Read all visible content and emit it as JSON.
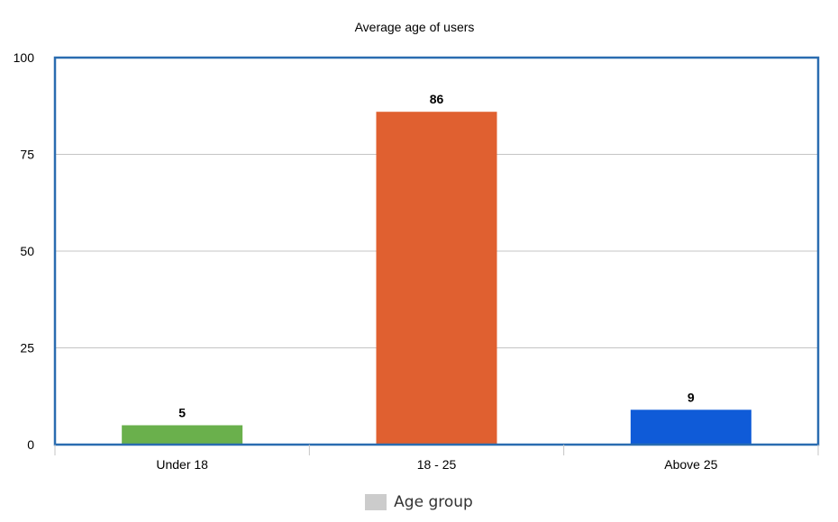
{
  "chart_data": {
    "type": "bar",
    "title": "Average age of users",
    "categories": [
      "Under 18",
      "18 - 25",
      "Above 25"
    ],
    "values": [
      5,
      86,
      9
    ],
    "data_labels": [
      "5",
      "86",
      "9"
    ],
    "yticks": [
      "0",
      "25",
      "50",
      "75",
      "100"
    ],
    "ylim": [
      0,
      100
    ],
    "xlabel": "",
    "ylabel": "",
    "grid": true,
    "legend_position": "bottom",
    "bar_colors": [
      "#6ab04c",
      "#e06030",
      "#0f5bd8"
    ],
    "frame_color": "#2a6cb0",
    "legend": {
      "label": "Age group",
      "swatch_color": "#cccccc"
    }
  }
}
